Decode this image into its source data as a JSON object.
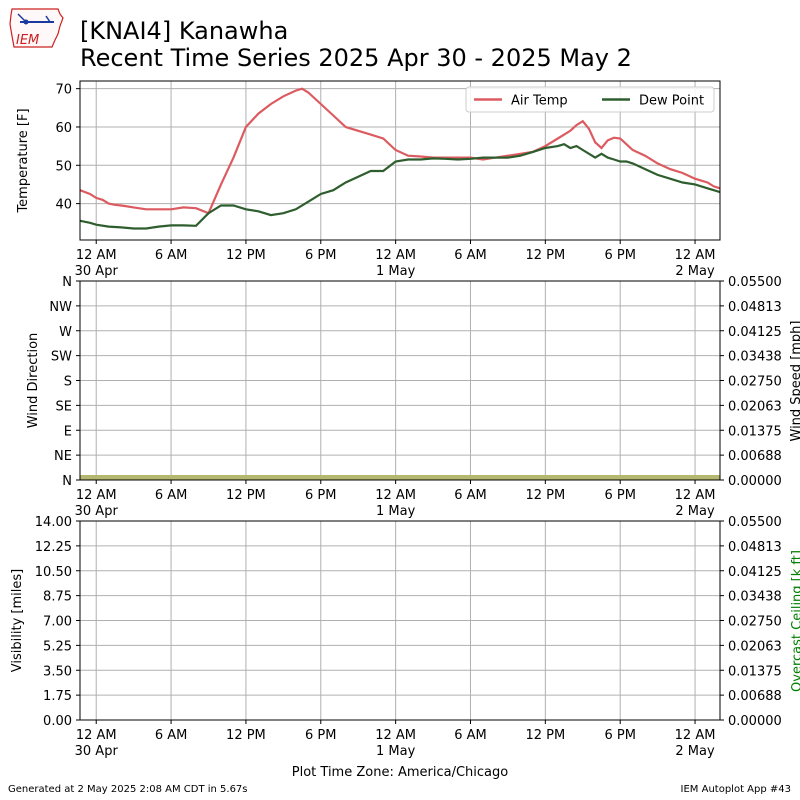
{
  "logo": {
    "text": "IEM",
    "icon": "iowa-state-outline-icon"
  },
  "title": {
    "line1": "[KNAI4] Kanawha",
    "line2": "Recent Time Series 2025 Apr 30 - 2025 May 2"
  },
  "footer": {
    "generated": "Generated at 2 May 2025 2:08 AM CDT in 5.67s",
    "app": "IEM Autoplot App #43"
  },
  "colors": {
    "air_temp": "#dc5b60",
    "dew_point": "#2e5e2e",
    "wind_band": "#b5b770",
    "grid": "#b0b0b0",
    "ceiling_label": "#008000"
  },
  "x_ticks": [
    {
      "hours": 0,
      "label": "12 AM",
      "sublabel": "30 Apr"
    },
    {
      "hours": 6,
      "label": "6 AM",
      "sublabel": ""
    },
    {
      "hours": 12,
      "label": "12 PM",
      "sublabel": ""
    },
    {
      "hours": 18,
      "label": "6 PM",
      "sublabel": ""
    },
    {
      "hours": 24,
      "label": "12 AM",
      "sublabel": "1 May"
    },
    {
      "hours": 30,
      "label": "6 AM",
      "sublabel": ""
    },
    {
      "hours": 36,
      "label": "12 PM",
      "sublabel": ""
    },
    {
      "hours": 42,
      "label": "6 PM",
      "sublabel": ""
    },
    {
      "hours": 48,
      "label": "12 AM",
      "sublabel": "2 May"
    }
  ],
  "chart_data": [
    {
      "type": "line",
      "panel": "temperature",
      "ylabel": "Temperature [F]",
      "xlim": [
        -1.3,
        50.0
      ],
      "ylim": [
        30.5,
        72.0
      ],
      "yticks": [
        40,
        50,
        60,
        70
      ],
      "grid": true,
      "legend_position": "top-right",
      "series": [
        {
          "name": "Air Temp",
          "x": [
            -1.3,
            -0.5,
            0,
            0.5,
            1,
            1.5,
            2,
            3,
            4,
            5,
            6,
            7,
            8,
            9,
            10,
            11,
            12,
            13,
            14,
            15,
            16,
            16.5,
            17,
            18,
            19,
            20,
            21,
            22,
            23,
            24,
            25,
            26,
            27,
            28,
            29,
            30,
            31,
            32,
            33,
            34,
            35,
            36,
            37,
            38,
            38.5,
            39,
            39.5,
            40,
            40.5,
            41,
            41.5,
            42,
            42.5,
            43,
            44,
            45,
            46,
            47,
            48,
            49,
            49.5,
            50
          ],
          "y": [
            43.5,
            42.5,
            41.5,
            41,
            40,
            39.7,
            39.5,
            39,
            38.5,
            38.5,
            38.5,
            39,
            38.8,
            37.5,
            45,
            52,
            60,
            63.5,
            66,
            68,
            69.5,
            70,
            69,
            66,
            63,
            60,
            59,
            58,
            57,
            54,
            52.5,
            52.3,
            52,
            52,
            52,
            52,
            51.5,
            52,
            52.5,
            53,
            53.5,
            55,
            57,
            59,
            60.5,
            61.5,
            59.5,
            56,
            54.5,
            56.5,
            57.2,
            57,
            55.5,
            54,
            52.5,
            50.5,
            49,
            48,
            46.5,
            45.5,
            44.5,
            44
          ]
        },
        {
          "name": "Dew Point",
          "x": [
            -1.3,
            -0.5,
            0,
            1,
            2,
            3,
            4,
            5,
            6,
            7,
            8,
            9,
            10,
            11,
            12,
            13,
            14,
            15,
            16,
            17,
            18,
            19,
            20,
            21,
            22,
            23,
            24,
            25,
            26,
            27,
            28,
            29,
            30,
            31,
            32,
            33,
            34,
            35,
            36,
            37,
            37.5,
            38,
            38.5,
            39,
            40,
            40.5,
            41,
            41.5,
            42,
            42.5,
            43,
            44,
            45,
            46,
            47,
            48,
            49,
            49.5,
            50
          ],
          "y": [
            35.5,
            35,
            34.5,
            34,
            33.8,
            33.5,
            33.5,
            34,
            34.3,
            34.3,
            34.2,
            37.5,
            39.5,
            39.5,
            38.5,
            38,
            37,
            37.5,
            38.5,
            40.5,
            42.5,
            43.5,
            45.5,
            47,
            48.5,
            48.5,
            51,
            51.5,
            51.5,
            51.8,
            51.7,
            51.5,
            51.7,
            52,
            52,
            52,
            52.5,
            53.5,
            54.5,
            55,
            55.5,
            54.5,
            55,
            54,
            52,
            53,
            52,
            51.5,
            51,
            51,
            50.5,
            49,
            47.5,
            46.5,
            45.5,
            45,
            44,
            43.5,
            43
          ]
        }
      ]
    },
    {
      "type": "line",
      "panel": "wind",
      "ylabel": "Wind Direction",
      "y2label": "Wind Speed [mph]",
      "yticks_left": [
        "N",
        "NE",
        "E",
        "SE",
        "S",
        "SW",
        "W",
        "NW",
        "N"
      ],
      "yticks_right": [
        "0.00000",
        "0.00688",
        "0.01375",
        "0.02063",
        "0.02750",
        "0.03438",
        "0.04125",
        "0.04813",
        "0.05500"
      ],
      "y2lim": [
        0,
        0.055
      ],
      "grid": true,
      "series": [
        {
          "name": "",
          "x": [
            -1.3,
            50.0
          ],
          "y": [
            0,
            0
          ]
        }
      ]
    },
    {
      "type": "line",
      "panel": "visibility",
      "ylabel": "Visibility [miles]",
      "y2label": "Overcast Ceiling [k ft]",
      "yticks_left": [
        "0.00",
        "1.75",
        "3.50",
        "5.25",
        "7.00",
        "8.75",
        "10.50",
        "12.25",
        "14.00"
      ],
      "yticks_right": [
        "0.00000",
        "0.00688",
        "0.01375",
        "0.02063",
        "0.02750",
        "0.03438",
        "0.04125",
        "0.04813",
        "0.05500"
      ],
      "ylim": [
        0,
        14
      ],
      "y2lim": [
        0,
        0.055
      ],
      "grid": true,
      "xlabel": "Plot Time Zone: America/Chicago",
      "series": []
    }
  ]
}
